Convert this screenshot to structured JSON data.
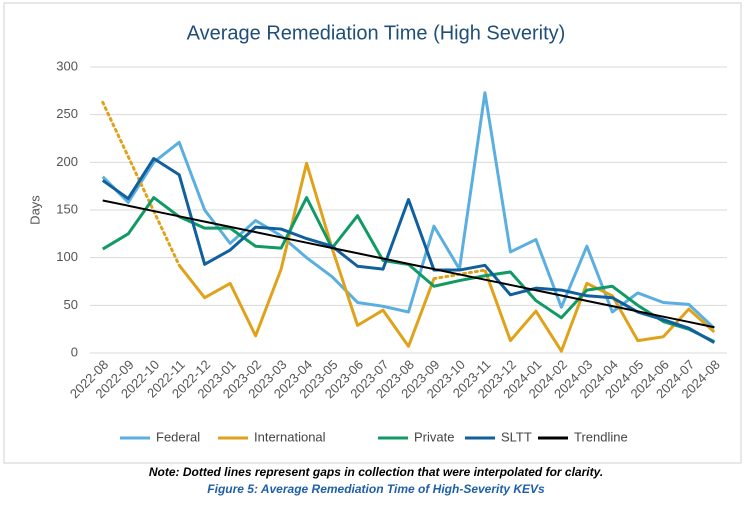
{
  "chart_data": {
    "type": "line",
    "title": "Average Remediation Time (High Severity)",
    "y_label": "Days",
    "note": "Note: Dotted lines represent gaps in collection that were interpolated for clarity.",
    "caption": "Figure 5: Average Remediation Time of High-Severity KEVs",
    "categories": [
      "2022-08",
      "2022-09",
      "2022-10",
      "2022-11",
      "2022-12",
      "2023-01",
      "2023-02",
      "2023-03",
      "2023-04",
      "2023-05",
      "2023-06",
      "2023-07",
      "2023-08",
      "2023-09",
      "2023-10",
      "2023-11",
      "2023-12",
      "2024-01",
      "2024-02",
      "2024-03",
      "2024-04",
      "2024-05",
      "2024-06",
      "2024-07",
      "2024-08"
    ],
    "ylim": [
      0,
      300
    ],
    "yticks": [
      0,
      50,
      100,
      150,
      200,
      250,
      300
    ],
    "grid": true,
    "legend": "bottom",
    "series": [
      {
        "name": "Federal",
        "color": "#5aafe0",
        "values": [
          185,
          158,
          200,
          221,
          150,
          115,
          139,
          123,
          100,
          80,
          53,
          49,
          43,
          133,
          88,
          273,
          106,
          119,
          48,
          112,
          43,
          63,
          53,
          51,
          26
        ]
      },
      {
        "name": "International",
        "color": "#e0a21a",
        "values": [
          263,
          null,
          null,
          92,
          58,
          73,
          18,
          88,
          199,
          110,
          29,
          45,
          7,
          78,
          null,
          87,
          13,
          44,
          2,
          73,
          60,
          13,
          17,
          46,
          22
        ]
      },
      {
        "name": "Private",
        "color": "#109a64",
        "values": [
          109,
          125,
          163,
          143,
          131,
          131,
          112,
          110,
          163,
          110,
          144,
          97,
          93,
          70,
          76,
          81,
          85,
          55,
          37,
          66,
          70,
          50,
          33,
          25,
          12
        ]
      },
      {
        "name": "SLTT",
        "color": "#10609e",
        "values": [
          181,
          162,
          204,
          187,
          93,
          108,
          132,
          130,
          120,
          112,
          91,
          88,
          161,
          87,
          87,
          92,
          61,
          68,
          66,
          60,
          58,
          43,
          35,
          26,
          11
        ]
      },
      {
        "name": "Trendline",
        "color": "#000000",
        "values": [
          160,
          154.5,
          148.9,
          143.4,
          137.8,
          132.3,
          126.8,
          121.2,
          115.7,
          110.1,
          104.6,
          99.1,
          93.5,
          88,
          82.4,
          76.9,
          71.4,
          65.8,
          60.3,
          54.7,
          49.2,
          43.7,
          38.1,
          32.6,
          27
        ]
      }
    ]
  }
}
